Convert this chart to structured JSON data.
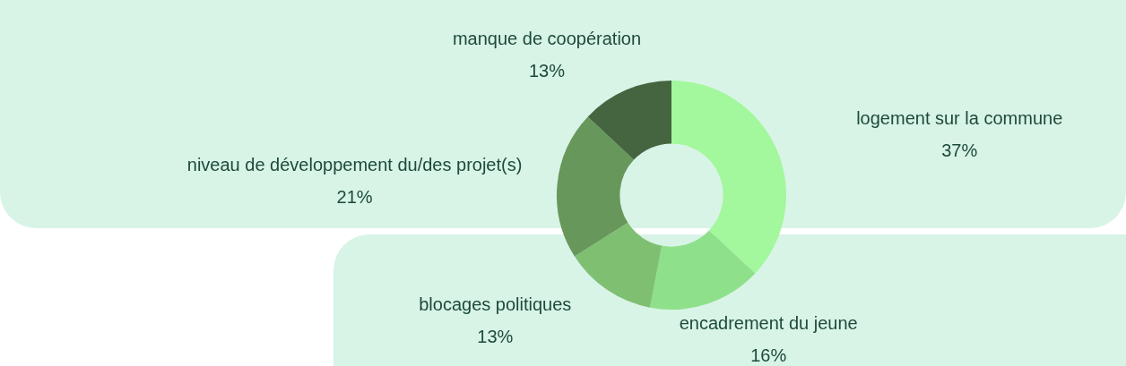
{
  "chart_data": {
    "type": "donut",
    "categories": [
      "logement sur la commune",
      "encadrement du jeune",
      "blocages politiques",
      "niveau de développement du/des projet(s)",
      "manque de coopération"
    ],
    "values": [
      37,
      16,
      13,
      21,
      13
    ],
    "colors": [
      "#a3f79c",
      "#8fe08a",
      "#7fbf72",
      "#67975a",
      "#44653f"
    ],
    "value_labels": [
      "37%",
      "16%",
      "13%",
      "21%",
      "13%"
    ],
    "legend": false
  }
}
